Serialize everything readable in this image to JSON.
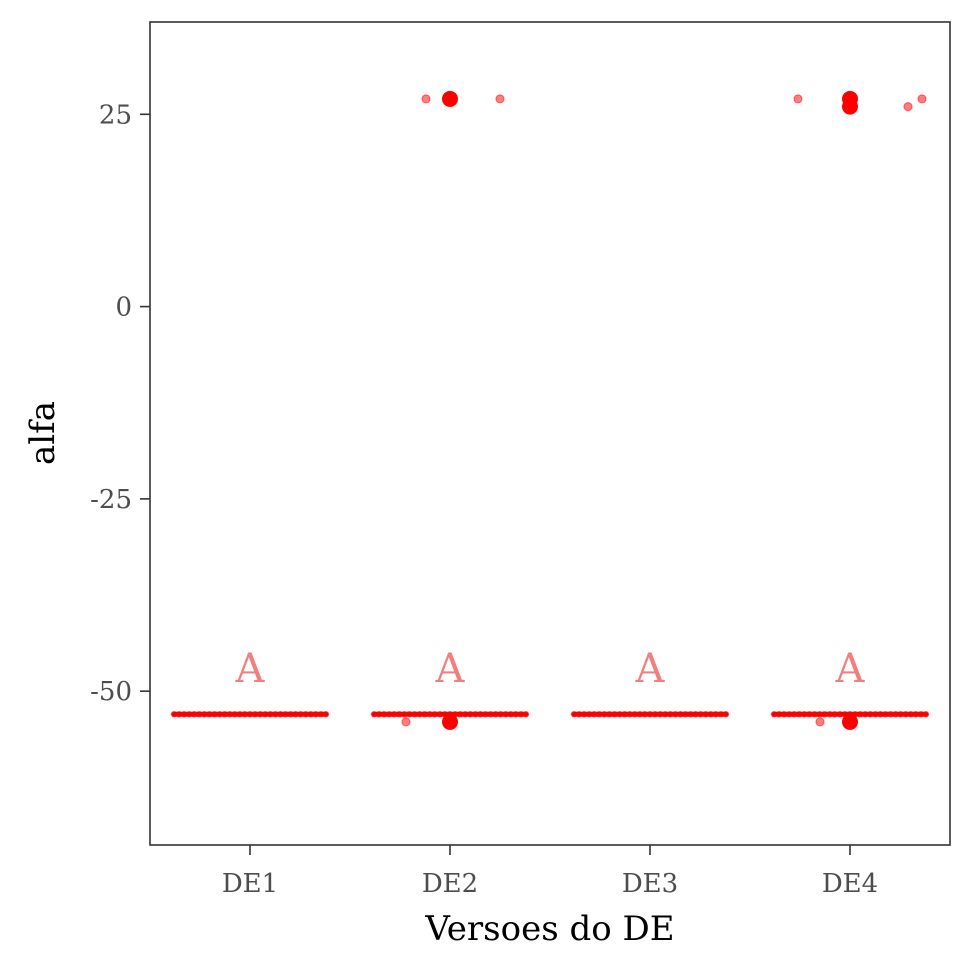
{
  "chart_data": {
    "type": "scatter",
    "xlabel": "Versoes do DE",
    "ylabel": "alfa",
    "categories": [
      "DE1",
      "DE2",
      "DE3",
      "DE4"
    ],
    "ylim": [
      -70,
      37
    ],
    "yticks": [
      25,
      0,
      -25,
      -50
    ],
    "ytick_labels": [
      "25",
      "0",
      "-25",
      "-50"
    ],
    "grid": false,
    "series_color": "#ff0000",
    "letter_color": "#f08080",
    "group_letters": [
      {
        "category": "DE1",
        "label": "A",
        "y": -47
      },
      {
        "category": "DE2",
        "label": "A",
        "y": -47
      },
      {
        "category": "DE3",
        "label": "A",
        "y": -47
      },
      {
        "category": "DE4",
        "label": "A",
        "y": -47
      }
    ],
    "main_band": {
      "y": -53,
      "categories": [
        "DE1",
        "DE2",
        "DE3",
        "DE4"
      ]
    },
    "points": [
      {
        "category": "DE2",
        "jitter": -0.12,
        "y": 27,
        "kind": "jitter"
      },
      {
        "category": "DE2",
        "jitter": 0.25,
        "y": 27,
        "kind": "jitter"
      },
      {
        "category": "DE2",
        "jitter": -0.22,
        "y": -54,
        "kind": "jitter"
      },
      {
        "category": "DE4",
        "jitter": -0.26,
        "y": 27,
        "kind": "jitter"
      },
      {
        "category": "DE4",
        "jitter": 0.29,
        "y": 26,
        "kind": "jitter"
      },
      {
        "category": "DE4",
        "jitter": 0.36,
        "y": 27,
        "kind": "jitter"
      },
      {
        "category": "DE4",
        "jitter": -0.15,
        "y": -54,
        "kind": "jitter"
      },
      {
        "category": "DE2",
        "jitter": 0,
        "y": 27,
        "kind": "outlier"
      },
      {
        "category": "DE2",
        "jitter": 0,
        "y": -54,
        "kind": "outlier"
      },
      {
        "category": "DE4",
        "jitter": 0,
        "y": 27,
        "kind": "outlier"
      },
      {
        "category": "DE4",
        "jitter": 0,
        "y": 26,
        "kind": "outlier"
      },
      {
        "category": "DE4",
        "jitter": 0,
        "y": -54,
        "kind": "outlier"
      }
    ]
  }
}
